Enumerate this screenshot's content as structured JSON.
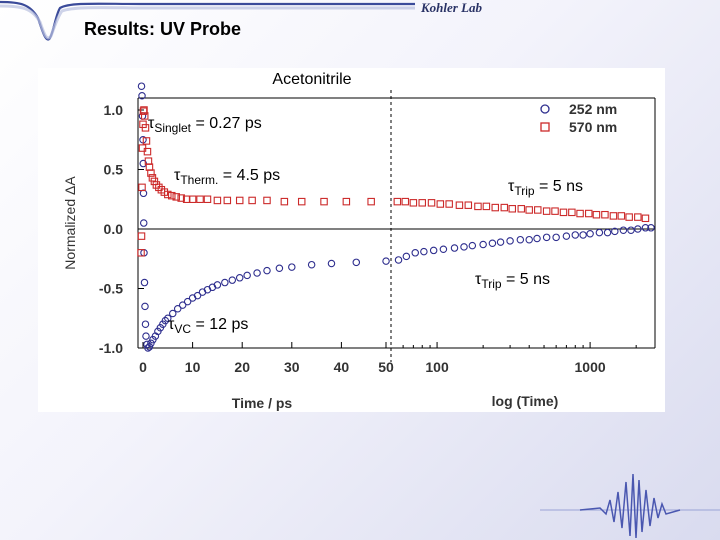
{
  "slide": {
    "title": "Results: UV Probe",
    "logo": "Kohler Lab"
  },
  "colors": {
    "series_252": "#2e2e8e",
    "series_570": "#cc2a2a",
    "header_wave": "#3b4b9a"
  },
  "chart_data": {
    "type": "scatter",
    "title": "Acetonitrile",
    "ylabel": "Normalized ΔA",
    "xlabel_left": "Time / ps",
    "xlabel_right": "log (Time)",
    "ylim": [
      -1.0,
      1.0
    ],
    "yticks": [
      "1.0",
      "0.5",
      "0.0",
      "-0.5",
      "-1.0"
    ],
    "xlim_linear": [
      0,
      50
    ],
    "xticks_linear": [
      "0",
      "10",
      "20",
      "30",
      "40",
      "50"
    ],
    "xlim_log": [
      50,
      2500
    ],
    "xticks_log": [
      "100",
      "1000"
    ],
    "grid": false,
    "legend_position": "top-right",
    "series": [
      {
        "name": "252 nm",
        "marker": "circle",
        "color": "#2e2e8e",
        "points": [
          [
            -0.3,
            1.2
          ],
          [
            -0.2,
            1.12
          ],
          [
            -0.1,
            0.95
          ],
          [
            0.0,
            0.75
          ],
          [
            0.05,
            0.55
          ],
          [
            0.1,
            0.3
          ],
          [
            0.15,
            0.05
          ],
          [
            0.2,
            -0.2
          ],
          [
            0.3,
            -0.45
          ],
          [
            0.4,
            -0.65
          ],
          [
            0.5,
            -0.8
          ],
          [
            0.6,
            -0.9
          ],
          [
            0.8,
            -0.97
          ],
          [
            1.0,
            -1.0
          ],
          [
            1.3,
            -0.99
          ],
          [
            1.6,
            -0.96
          ],
          [
            2.0,
            -0.93
          ],
          [
            2.5,
            -0.9
          ],
          [
            3.0,
            -0.86
          ],
          [
            3.5,
            -0.83
          ],
          [
            4.0,
            -0.8
          ],
          [
            4.5,
            -0.77
          ],
          [
            5.0,
            -0.75
          ],
          [
            6.0,
            -0.71
          ],
          [
            7.0,
            -0.67
          ],
          [
            8.0,
            -0.64
          ],
          [
            9.0,
            -0.61
          ],
          [
            10.0,
            -0.58
          ],
          [
            11.0,
            -0.56
          ],
          [
            12.0,
            -0.53
          ],
          [
            13.0,
            -0.51
          ],
          [
            14.0,
            -0.49
          ],
          [
            15.0,
            -0.47
          ],
          [
            16.5,
            -0.45
          ],
          [
            18.0,
            -0.43
          ],
          [
            19.5,
            -0.41
          ],
          [
            21.0,
            -0.39
          ],
          [
            23.0,
            -0.37
          ],
          [
            25.0,
            -0.35
          ],
          [
            27.5,
            -0.33
          ],
          [
            30.0,
            -0.32
          ],
          [
            34.0,
            -0.3
          ],
          [
            38.0,
            -0.29
          ],
          [
            43.0,
            -0.28
          ],
          [
            49.0,
            -0.27
          ],
          [
            56,
            -0.26
          ],
          [
            63,
            -0.23
          ],
          [
            72,
            -0.2
          ],
          [
            82,
            -0.19
          ],
          [
            95,
            -0.18
          ],
          [
            110,
            -0.17
          ],
          [
            130,
            -0.16
          ],
          [
            150,
            -0.15
          ],
          [
            170,
            -0.14
          ],
          [
            200,
            -0.13
          ],
          [
            230,
            -0.12
          ],
          [
            260,
            -0.11
          ],
          [
            300,
            -0.1
          ],
          [
            350,
            -0.09
          ],
          [
            400,
            -0.09
          ],
          [
            450,
            -0.08
          ],
          [
            520,
            -0.07
          ],
          [
            600,
            -0.07
          ],
          [
            700,
            -0.06
          ],
          [
            800,
            -0.05
          ],
          [
            900,
            -0.05
          ],
          [
            1000,
            -0.04
          ],
          [
            1150,
            -0.03
          ],
          [
            1300,
            -0.03
          ],
          [
            1450,
            -0.02
          ],
          [
            1650,
            -0.01
          ],
          [
            1850,
            -0.01
          ],
          [
            2050,
            0.0
          ],
          [
            2300,
            0.01
          ],
          [
            2500,
            0.01
          ]
        ]
      },
      {
        "name": "570 nm",
        "marker": "square",
        "color": "#cc2a2a",
        "points": [
          [
            -0.4,
            -0.2
          ],
          [
            -0.3,
            -0.06
          ],
          [
            -0.2,
            0.35
          ],
          [
            -0.1,
            0.68
          ],
          [
            0.0,
            0.88
          ],
          [
            0.1,
            0.99
          ],
          [
            0.2,
            1.0
          ],
          [
            0.35,
            0.95
          ],
          [
            0.5,
            0.85
          ],
          [
            0.7,
            0.74
          ],
          [
            0.9,
            0.65
          ],
          [
            1.1,
            0.57
          ],
          [
            1.3,
            0.52
          ],
          [
            1.6,
            0.47
          ],
          [
            1.9,
            0.43
          ],
          [
            2.3,
            0.4
          ],
          [
            2.7,
            0.37
          ],
          [
            3.2,
            0.35
          ],
          [
            3.7,
            0.33
          ],
          [
            4.3,
            0.31
          ],
          [
            5.0,
            0.29
          ],
          [
            5.8,
            0.28
          ],
          [
            6.7,
            0.27
          ],
          [
            7.7,
            0.26
          ],
          [
            8.8,
            0.25
          ],
          [
            10.0,
            0.25
          ],
          [
            11.5,
            0.25
          ],
          [
            13.0,
            0.25
          ],
          [
            15.0,
            0.24
          ],
          [
            17.0,
            0.24
          ],
          [
            19.5,
            0.24
          ],
          [
            22.0,
            0.24
          ],
          [
            25.0,
            0.24
          ],
          [
            28.5,
            0.23
          ],
          [
            32.0,
            0.23
          ],
          [
            36.5,
            0.23
          ],
          [
            41.0,
            0.23
          ],
          [
            46.0,
            0.23
          ],
          [
            55,
            0.23
          ],
          [
            62,
            0.23
          ],
          [
            70,
            0.22
          ],
          [
            80,
            0.22
          ],
          [
            92,
            0.22
          ],
          [
            105,
            0.21
          ],
          [
            120,
            0.21
          ],
          [
            140,
            0.2
          ],
          [
            160,
            0.2
          ],
          [
            185,
            0.19
          ],
          [
            210,
            0.19
          ],
          [
            240,
            0.18
          ],
          [
            275,
            0.18
          ],
          [
            310,
            0.17
          ],
          [
            355,
            0.17
          ],
          [
            400,
            0.16
          ],
          [
            455,
            0.16
          ],
          [
            520,
            0.15
          ],
          [
            590,
            0.15
          ],
          [
            670,
            0.14
          ],
          [
            760,
            0.14
          ],
          [
            860,
            0.13
          ],
          [
            980,
            0.13
          ],
          [
            1100,
            0.12
          ],
          [
            1250,
            0.12
          ],
          [
            1420,
            0.11
          ],
          [
            1600,
            0.11
          ],
          [
            1800,
            0.1
          ],
          [
            2050,
            0.1
          ],
          [
            2300,
            0.09
          ]
        ]
      }
    ],
    "annotations": [
      {
        "symbol": "τ",
        "sub": "Singlet",
        "text": " = 0.27 ps"
      },
      {
        "symbol": "τ",
        "sub": "Therm.",
        "text": " = 4.5 ps"
      },
      {
        "symbol": "τ",
        "sub": "VC",
        "text": " = 12 ps"
      },
      {
        "symbol": "τ",
        "sub": "Trip",
        "text": " = 5 ns"
      },
      {
        "symbol": "τ",
        "sub": "Trip",
        "text": " = 5 ns"
      }
    ]
  }
}
